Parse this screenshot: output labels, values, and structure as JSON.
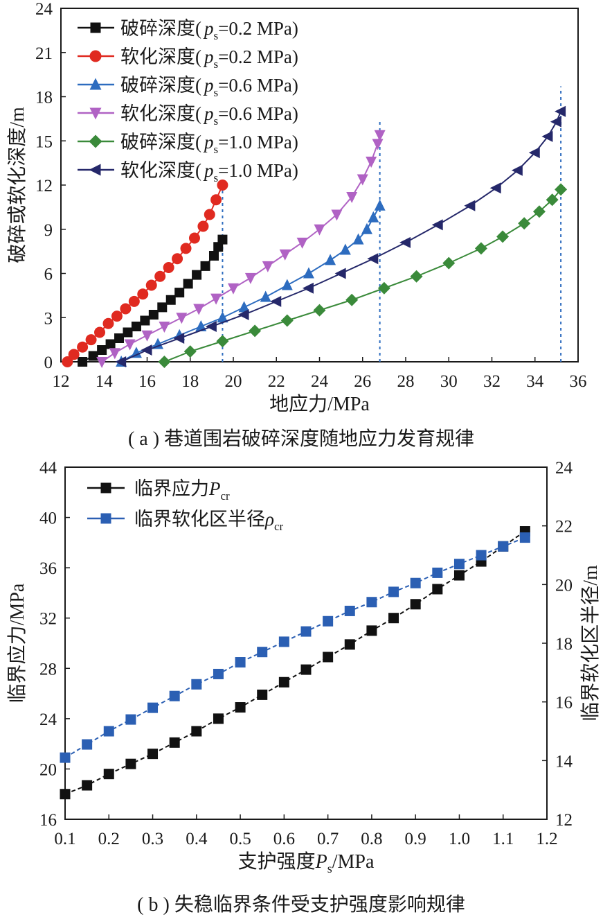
{
  "chart_data": [
    {
      "type": "line",
      "caption": "( a ) 巷道围岩破碎深度随地应力发育规律",
      "xlabel": "地应力/MPa",
      "ylabel": "破碎或软化深度/m",
      "xlim": [
        12,
        36
      ],
      "ylim": [
        0,
        24
      ],
      "xticks": [
        12,
        14,
        16,
        18,
        20,
        22,
        24,
        26,
        28,
        30,
        32,
        34,
        36
      ],
      "yticks": [
        0,
        3,
        6,
        9,
        12,
        15,
        18,
        21,
        24
      ],
      "grid": false,
      "legend_position": "top-left",
      "critical_lines_x": [
        19.5,
        26.8,
        35.2
      ],
      "series": [
        {
          "name": "破碎深度(",
          "ps_label": "p",
          "ps_sub": "s",
          "ps_value": "=0.2 MPa)",
          "color": "#111111",
          "marker": "square",
          "x": [
            13.0,
            13.5,
            13.9,
            14.3,
            14.7,
            15.1,
            15.5,
            15.9,
            16.3,
            16.7,
            17.1,
            17.5,
            17.9,
            18.3,
            18.7,
            19.1,
            19.3,
            19.5
          ],
          "y": [
            0.0,
            0.4,
            0.8,
            1.2,
            1.6,
            2.0,
            2.4,
            2.8,
            3.2,
            3.7,
            4.2,
            4.7,
            5.3,
            5.9,
            6.5,
            7.2,
            7.8,
            8.3
          ]
        },
        {
          "name": "软化深度(",
          "ps_label": "p",
          "ps_sub": "s",
          "ps_value": "=0.2 MPa)",
          "color": "#e02a20",
          "marker": "circle",
          "x": [
            12.3,
            12.6,
            13.0,
            13.4,
            13.8,
            14.2,
            14.6,
            15.0,
            15.4,
            15.8,
            16.2,
            16.6,
            17.0,
            17.4,
            17.8,
            18.2,
            18.6,
            18.9,
            19.2,
            19.5
          ],
          "y": [
            0.0,
            0.5,
            1.0,
            1.5,
            2.0,
            2.6,
            3.1,
            3.6,
            4.1,
            4.6,
            5.2,
            5.8,
            6.4,
            7.0,
            7.7,
            8.4,
            9.2,
            10.0,
            11.0,
            12.0
          ]
        },
        {
          "name": "破碎深度(",
          "ps_label": "p",
          "ps_sub": "s",
          "ps_value": "=0.6 MPa)",
          "color": "#2d6cbf",
          "marker": "triangle-up",
          "x": [
            14.8,
            15.5,
            16.5,
            17.5,
            18.5,
            19.5,
            20.5,
            21.5,
            22.5,
            23.5,
            24.5,
            25.2,
            25.8,
            26.2,
            26.5,
            26.8
          ],
          "y": [
            0.0,
            0.6,
            1.2,
            1.8,
            2.4,
            3.0,
            3.7,
            4.4,
            5.2,
            6.0,
            6.9,
            7.6,
            8.3,
            9.0,
            9.8,
            10.6
          ]
        },
        {
          "name": "软化深度(",
          "ps_label": "p",
          "ps_sub": "s",
          "ps_value": "=0.6 MPa)",
          "color": "#b062c4",
          "marker": "triangle-down",
          "x": [
            13.9,
            14.5,
            15.2,
            16.0,
            16.8,
            17.6,
            18.4,
            19.2,
            20.0,
            20.8,
            21.6,
            22.4,
            23.2,
            24.0,
            24.8,
            25.5,
            26.0,
            26.4,
            26.7,
            26.8
          ],
          "y": [
            0.0,
            0.6,
            1.2,
            1.8,
            2.4,
            3.0,
            3.6,
            4.3,
            5.0,
            5.7,
            6.5,
            7.3,
            8.1,
            9.0,
            10.0,
            11.2,
            12.4,
            13.6,
            14.8,
            15.4
          ]
        },
        {
          "name": "破碎深度(",
          "ps_label": "p",
          "ps_sub": "s",
          "ps_value": "=1.0 MPa)",
          "color": "#3a8a3a",
          "marker": "diamond",
          "x": [
            16.8,
            18.0,
            19.5,
            21.0,
            22.5,
            24.0,
            25.5,
            27.0,
            28.5,
            30.0,
            31.5,
            32.5,
            33.5,
            34.2,
            34.8,
            35.2
          ],
          "y": [
            0.0,
            0.7,
            1.4,
            2.1,
            2.8,
            3.5,
            4.2,
            5.0,
            5.8,
            6.7,
            7.7,
            8.5,
            9.4,
            10.2,
            11.0,
            11.7
          ]
        },
        {
          "name": "软化深度(",
          "ps_label": "p",
          "ps_sub": "s",
          "ps_value": "=1.0 MPa)",
          "color": "#25286a",
          "marker": "triangle-left",
          "x": [
            14.8,
            16.0,
            17.5,
            19.0,
            20.5,
            22.0,
            23.5,
            25.0,
            26.5,
            28.0,
            29.5,
            31.0,
            32.2,
            33.2,
            34.0,
            34.6,
            35.0,
            35.2
          ],
          "y": [
            0.0,
            0.8,
            1.6,
            2.4,
            3.2,
            4.1,
            5.0,
            6.0,
            7.0,
            8.1,
            9.3,
            10.6,
            11.8,
            13.0,
            14.2,
            15.3,
            16.3,
            17.0
          ]
        }
      ]
    },
    {
      "type": "line",
      "caption": "( b ) 失稳临界条件受支护强度影响规律",
      "xlabel_main": "支护强度",
      "xlabel_var": "P",
      "xlabel_sub": "s",
      "xlabel_unit": "/MPa",
      "ylabel_left": "临界应力/MPa",
      "ylabel_right": "临界软化区半径/m",
      "xlim": [
        0.1,
        1.2
      ],
      "ylim_left": [
        16,
        44
      ],
      "ylim_right": [
        12,
        24
      ],
      "xticks": [
        "0.1",
        "0.2",
        "0.3",
        "0.4",
        "0.5",
        "0.6",
        "0.7",
        "0.8",
        "0.9",
        "1.0",
        "1.1",
        "1.2"
      ],
      "yticks_left": [
        16,
        20,
        24,
        28,
        32,
        36,
        40,
        44
      ],
      "yticks_right": [
        12,
        14,
        16,
        18,
        20,
        22,
        24
      ],
      "grid": false,
      "legend_position": "top-left",
      "x": [
        0.1,
        0.15,
        0.2,
        0.25,
        0.3,
        0.35,
        0.4,
        0.45,
        0.5,
        0.55,
        0.6,
        0.65,
        0.7,
        0.75,
        0.8,
        0.85,
        0.9,
        0.95,
        1.0,
        1.05,
        1.1,
        1.15
      ],
      "series": [
        {
          "name": "临界应力",
          "name_var": "P",
          "name_sub": "cr",
          "axis": "left",
          "color": "#111111",
          "marker": "square",
          "values": [
            18.0,
            18.7,
            19.6,
            20.4,
            21.2,
            22.1,
            23.0,
            24.0,
            24.9,
            25.9,
            26.9,
            27.9,
            28.9,
            29.9,
            31.0,
            32.0,
            33.1,
            34.3,
            35.4,
            36.5,
            37.7,
            38.9
          ]
        },
        {
          "name": "临界软化区半径",
          "name_var": "ρ",
          "name_sub": "cr",
          "axis": "right",
          "color": "#2b5fb3",
          "marker": "square",
          "values": [
            14.1,
            14.55,
            15.0,
            15.4,
            15.8,
            16.2,
            16.6,
            16.95,
            17.35,
            17.7,
            18.05,
            18.4,
            18.75,
            19.1,
            19.4,
            19.75,
            20.05,
            20.4,
            20.7,
            21.0,
            21.3,
            21.6
          ]
        }
      ]
    }
  ]
}
